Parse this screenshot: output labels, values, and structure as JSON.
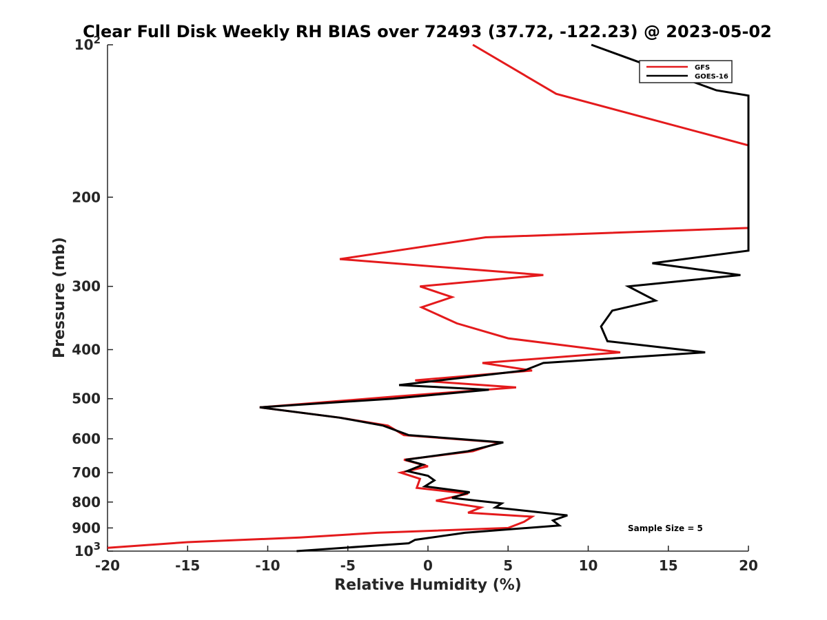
{
  "chart_data": {
    "type": "line",
    "title": "Clear Full Disk Weekly RH BIAS over 72493 (37.72, -122.23) @ 2023-05-02",
    "xlabel": "Relative Humidity (%)",
    "ylabel": "Pressure (mb)",
    "xlim": [
      -20,
      20
    ],
    "ylim": [
      1000,
      100
    ],
    "yscale": "log",
    "y_reversed": true,
    "grid": false,
    "legend_position": "top-right",
    "annotation": "Sample Size = 5",
    "x_ticks": [
      -20,
      -15,
      -10,
      -5,
      0,
      5,
      10,
      15,
      20
    ],
    "y_ticks": [
      {
        "value": 100,
        "label": "10",
        "sup": "2"
      },
      {
        "value": 200,
        "label": "200",
        "sup": ""
      },
      {
        "value": 300,
        "label": "300",
        "sup": ""
      },
      {
        "value": 400,
        "label": "400",
        "sup": ""
      },
      {
        "value": 500,
        "label": "500",
        "sup": ""
      },
      {
        "value": 600,
        "label": "600",
        "sup": ""
      },
      {
        "value": 700,
        "label": "700",
        "sup": ""
      },
      {
        "value": 800,
        "label": "800",
        "sup": ""
      },
      {
        "value": 900,
        "label": "900",
        "sup": ""
      },
      {
        "value": 1000,
        "label": "10",
        "sup": "3"
      }
    ],
    "series": [
      {
        "name": "GFS",
        "color": "#e41a1c",
        "points": [
          [
            2.8,
            100
          ],
          [
            8,
            125
          ],
          [
            20,
            158
          ],
          [
            20,
            230
          ],
          [
            3.6,
            240
          ],
          [
            -5.5,
            265
          ],
          [
            7.2,
            285
          ],
          [
            -0.5,
            300
          ],
          [
            1.5,
            315
          ],
          [
            -0.4,
            330
          ],
          [
            1.8,
            355
          ],
          [
            5,
            380
          ],
          [
            12,
            405
          ],
          [
            3.4,
            425
          ],
          [
            6.5,
            440
          ],
          [
            -0.8,
            460
          ],
          [
            5.5,
            475
          ],
          [
            -2,
            495
          ],
          [
            -10.5,
            520
          ],
          [
            -5.5,
            545
          ],
          [
            -2.5,
            565
          ],
          [
            -1.5,
            590
          ],
          [
            4.5,
            610
          ],
          [
            2.8,
            635
          ],
          [
            -1.5,
            660
          ],
          [
            0,
            680
          ],
          [
            -1.7,
            700
          ],
          [
            -0.5,
            720
          ],
          [
            -0.7,
            750
          ],
          [
            2.5,
            770
          ],
          [
            0.5,
            795
          ],
          [
            3.3,
            820
          ],
          [
            2.5,
            840
          ],
          [
            6.5,
            855
          ],
          [
            6,
            875
          ],
          [
            5,
            900
          ],
          [
            -3.2,
            920
          ],
          [
            -8,
            940
          ],
          [
            -15,
            960
          ],
          [
            -20,
            985
          ]
        ]
      },
      {
        "name": "GOES-16",
        "color": "#000000",
        "points": [
          [
            10.2,
            100
          ],
          [
            18,
            123
          ],
          [
            20,
            126
          ],
          [
            20,
            255
          ],
          [
            14,
            270
          ],
          [
            19.5,
            285
          ],
          [
            12.5,
            300
          ],
          [
            14.2,
            320
          ],
          [
            11.5,
            335
          ],
          [
            10.8,
            360
          ],
          [
            11.2,
            385
          ],
          [
            17.3,
            405
          ],
          [
            7.2,
            425
          ],
          [
            6,
            440
          ],
          [
            -1.8,
            470
          ],
          [
            3.8,
            480
          ],
          [
            -2.2,
            500
          ],
          [
            -10.5,
            520
          ],
          [
            -5.5,
            545
          ],
          [
            -2.8,
            565
          ],
          [
            -1.2,
            590
          ],
          [
            4.7,
            610
          ],
          [
            2.5,
            635
          ],
          [
            -1.4,
            660
          ],
          [
            -0.3,
            675
          ],
          [
            -1.3,
            695
          ],
          [
            0,
            710
          ],
          [
            0.4,
            725
          ],
          [
            -0.2,
            745
          ],
          [
            2.6,
            765
          ],
          [
            1.5,
            785
          ],
          [
            4.6,
            805
          ],
          [
            4.2,
            820
          ],
          [
            8.7,
            850
          ],
          [
            7.8,
            870
          ],
          [
            8.2,
            890
          ],
          [
            2.3,
            920
          ],
          [
            -0.8,
            950
          ],
          [
            -1.2,
            965
          ],
          [
            -8.2,
            1000
          ]
        ]
      }
    ]
  }
}
